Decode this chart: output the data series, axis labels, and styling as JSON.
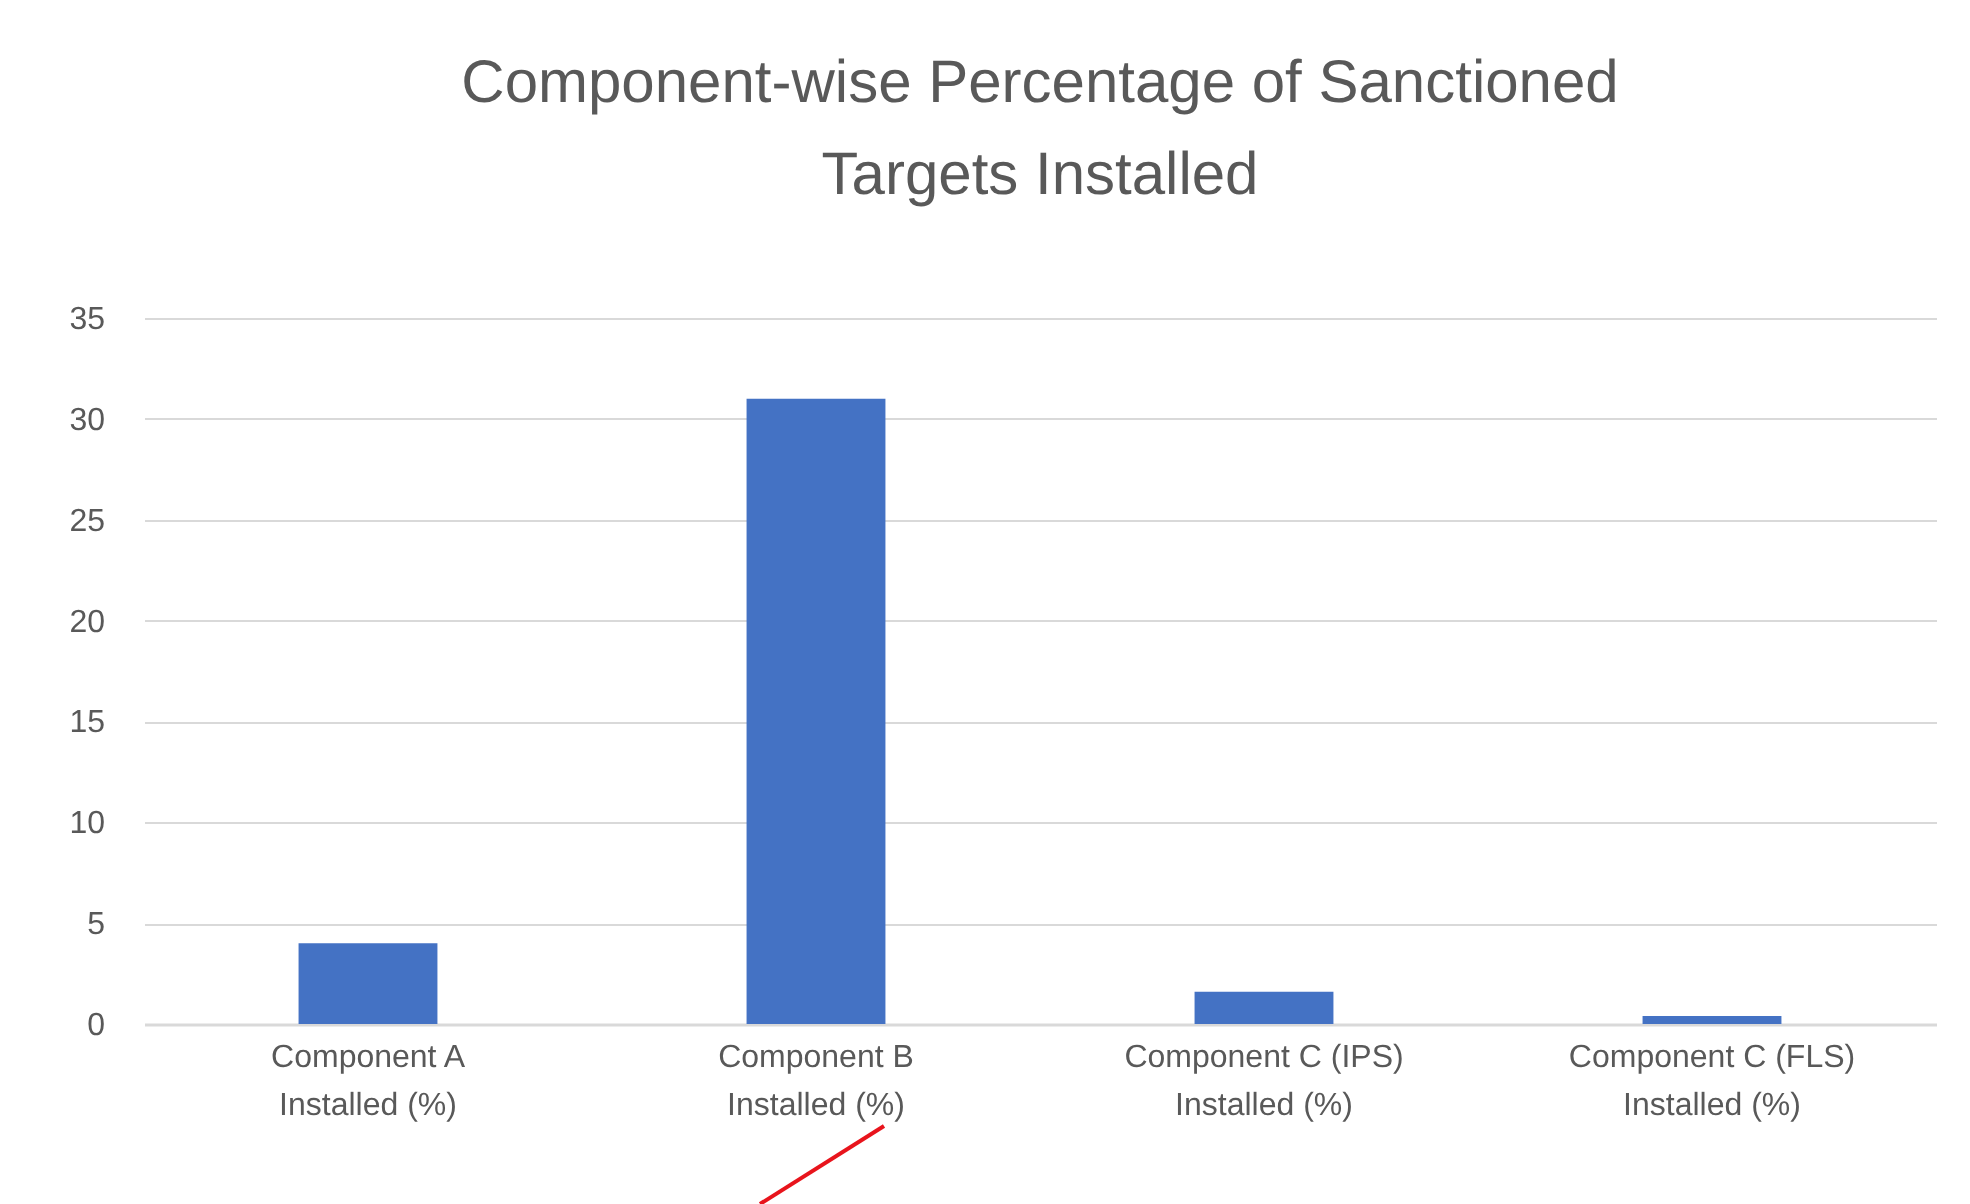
{
  "chart_data": {
    "type": "bar",
    "title": "Component-wise  Percentage of Sanctioned\nTargets Installed",
    "categories": [
      "Component A\nInstalled (%)",
      "Component B\nInstalled (%)",
      "Component C (IPS)\nInstalled (%)",
      "Component C (FLS)\nInstalled (%)"
    ],
    "values": [
      4,
      31,
      1.6,
      0.4
    ],
    "color": "#4472c4",
    "ylim": [
      0,
      35
    ],
    "yticks": [
      0,
      5,
      10,
      15,
      20,
      25,
      30,
      35
    ],
    "grid": "y"
  }
}
